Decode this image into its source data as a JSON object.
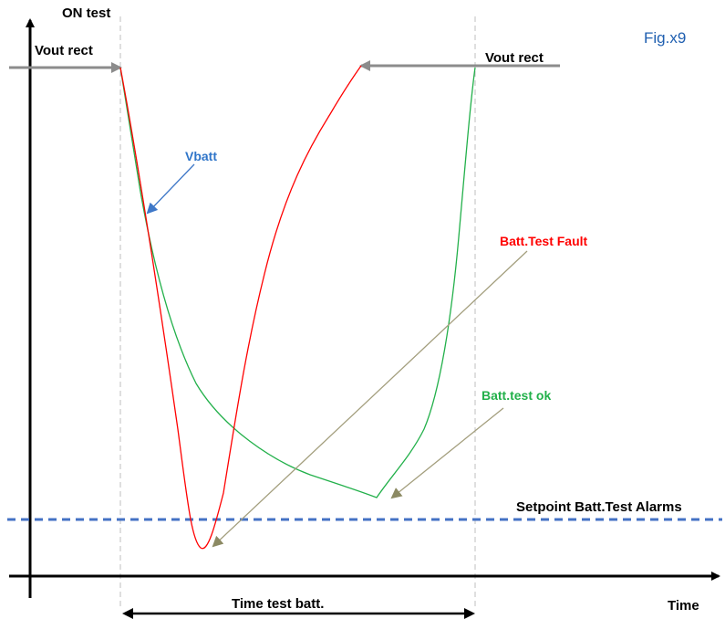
{
  "figure_label": "Fig.x9",
  "labels": {
    "on_test": "ON test",
    "vout_rect_left": "Vout rect",
    "vout_rect_right": "Vout rect",
    "vbatt": "Vbatt",
    "batt_test_fault": "Batt.Test Fault",
    "batt_test_ok": "Batt.test ok",
    "setpoint": "Setpoint Batt.Test Alarms",
    "time_test_batt": "Time test batt.",
    "time_axis": "Time"
  },
  "colors": {
    "axis": "#000000",
    "fault_curve": "#ff0000",
    "ok_curve": "#22b04a",
    "vbatt_label": "#2f75c9",
    "fault_label": "#ff0000",
    "ok_label": "#22b04a",
    "setpoint_line": "#4472c4",
    "gray_arrow": "#8c8c8c",
    "pointer_arrow": "#a39e7d",
    "guide_line": "#bfbfbf",
    "figure_label": "#1f5fb0"
  }
}
